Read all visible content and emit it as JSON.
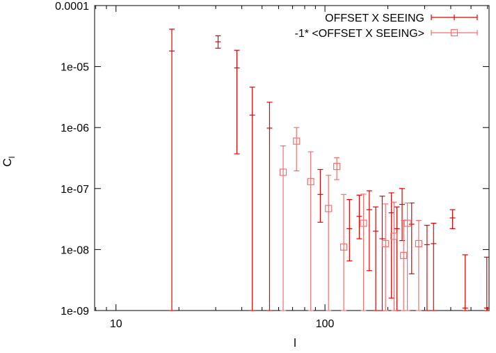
{
  "chart_data": {
    "type": "scatter",
    "xlabel": "l",
    "ylabel": "C",
    "ylabel_sub": "l",
    "xscale": "log",
    "yscale": "log",
    "xlim": [
      7.9,
      610
    ],
    "ylim": [
      1e-09,
      0.0001
    ],
    "grid": false,
    "legend_position": "top-right",
    "x_ticks": [
      {
        "value": 10,
        "label": "10"
      },
      {
        "value": 100,
        "label": "100"
      }
    ],
    "y_ticks": [
      {
        "value": 1e-09,
        "label": "1e-09"
      },
      {
        "value": 1e-08,
        "label": "1e-08"
      },
      {
        "value": 1e-07,
        "label": "1e-07"
      },
      {
        "value": 1e-06,
        "label": "1e-06"
      },
      {
        "value": 1e-05,
        "label": "1e-05"
      },
      {
        "value": 0.0001,
        "label": "0.0001"
      }
    ],
    "series": [
      {
        "name": "OFFSET X SEEING",
        "color": "#e00000",
        "marker": "plus",
        "points": [
          {
            "x": 18.5,
            "y": 1.8e-05,
            "ylo": 1e-09,
            "yhi": 4.1e-05
          },
          {
            "x": 30.8,
            "y": 2.55e-05,
            "ylo": 2e-05,
            "yhi": 3.2e-05
          },
          {
            "x": 37.9,
            "y": 9.5e-06,
            "ylo": 3.7e-07,
            "yhi": 1.85e-05
          },
          {
            "x": 44.9,
            "y": 1.6e-06,
            "ylo": 1e-09,
            "yhi": 4.6e-06
          },
          {
            "x": 54.3,
            "y": 9.8e-07,
            "ylo": 1e-09,
            "yhi": 2.6e-06
          },
          {
            "x": 95.0,
            "y": 8e-08,
            "ylo": 2.8e-08,
            "yhi": 2.05e-07
          },
          {
            "x": 131,
            "y": 2.2e-08,
            "ylo": 6.5e-09,
            "yhi": 6.6e-08
          },
          {
            "x": 146,
            "y": 3.5e-08,
            "ylo": 1.5e-08,
            "yhi": 7.8e-08
          },
          {
            "x": 163,
            "y": 4.5e-08,
            "ylo": 4.5e-09,
            "yhi": 9.2e-08
          },
          {
            "x": 175,
            "y": 2e-08,
            "ylo": 1e-09,
            "yhi": 5e-08
          },
          {
            "x": 188,
            "y": 1.5e-08,
            "ylo": 1e-09,
            "yhi": 7.5e-08
          },
          {
            "x": 208,
            "y": 4e-08,
            "ylo": 1.6e-09,
            "yhi": 8.5e-08
          },
          {
            "x": 221,
            "y": 2.2e-08,
            "ylo": 1e-09,
            "yhi": 5e-08
          },
          {
            "x": 234,
            "y": 5.5e-08,
            "ylo": 1.4e-08,
            "yhi": 1e-07
          },
          {
            "x": 260,
            "y": 2.6e-08,
            "ylo": 4e-09,
            "yhi": 5.8e-08
          },
          {
            "x": 308,
            "y": 1.2e-08,
            "ylo": 1e-09,
            "yhi": 2.5e-08
          },
          {
            "x": 331,
            "y": 1.25e-08,
            "ylo": 1e-09,
            "yhi": 2.7e-08
          },
          {
            "x": 408,
            "y": 3.3e-08,
            "ylo": 2.2e-08,
            "yhi": 4.5e-08
          },
          {
            "x": 469,
            "y": 1.1e-09,
            "ylo": 1e-09,
            "yhi": 8.2e-09
          },
          {
            "x": 595,
            "y": 1.1e-09,
            "ylo": 1e-09,
            "yhi": 7.5e-09
          }
        ]
      },
      {
        "name": "-1* <OFFSET X SEEING>",
        "color": "#f07070",
        "marker": "square",
        "points": [
          {
            "x": 63.1,
            "y": 1.85e-07,
            "ylo": 1e-09,
            "yhi": 5e-07
          },
          {
            "x": 73.1,
            "y": 6e-07,
            "ylo": 1.95e-07,
            "yhi": 1e-06
          },
          {
            "x": 85.5,
            "y": 1.3e-07,
            "ylo": 1e-09,
            "yhi": 4e-07
          },
          {
            "x": 104,
            "y": 4.7e-08,
            "ylo": 1e-09,
            "yhi": 1.65e-07
          },
          {
            "x": 114,
            "y": 2.3e-07,
            "ylo": 1.4e-07,
            "yhi": 3.2e-07
          },
          {
            "x": 123,
            "y": 1.1e-08,
            "ylo": 1e-09,
            "yhi": 8e-08
          },
          {
            "x": 153,
            "y": 2.7e-08,
            "ylo": 1e-09,
            "yhi": 8.1e-08
          },
          {
            "x": 195,
            "y": 1.25e-08,
            "ylo": 1e-09,
            "yhi": 5.6e-08
          },
          {
            "x": 214,
            "y": 1.65e-08,
            "ylo": 1e-09,
            "yhi": 6e-08
          },
          {
            "x": 238,
            "y": 8e-09,
            "ylo": 1e-09,
            "yhi": 3e-08
          },
          {
            "x": 248,
            "y": 2.7e-08,
            "ylo": 1e-09,
            "yhi": 5.8e-08
          },
          {
            "x": 281,
            "y": 1.25e-08,
            "ylo": 1e-09,
            "yhi": 3e-08
          }
        ]
      }
    ]
  }
}
